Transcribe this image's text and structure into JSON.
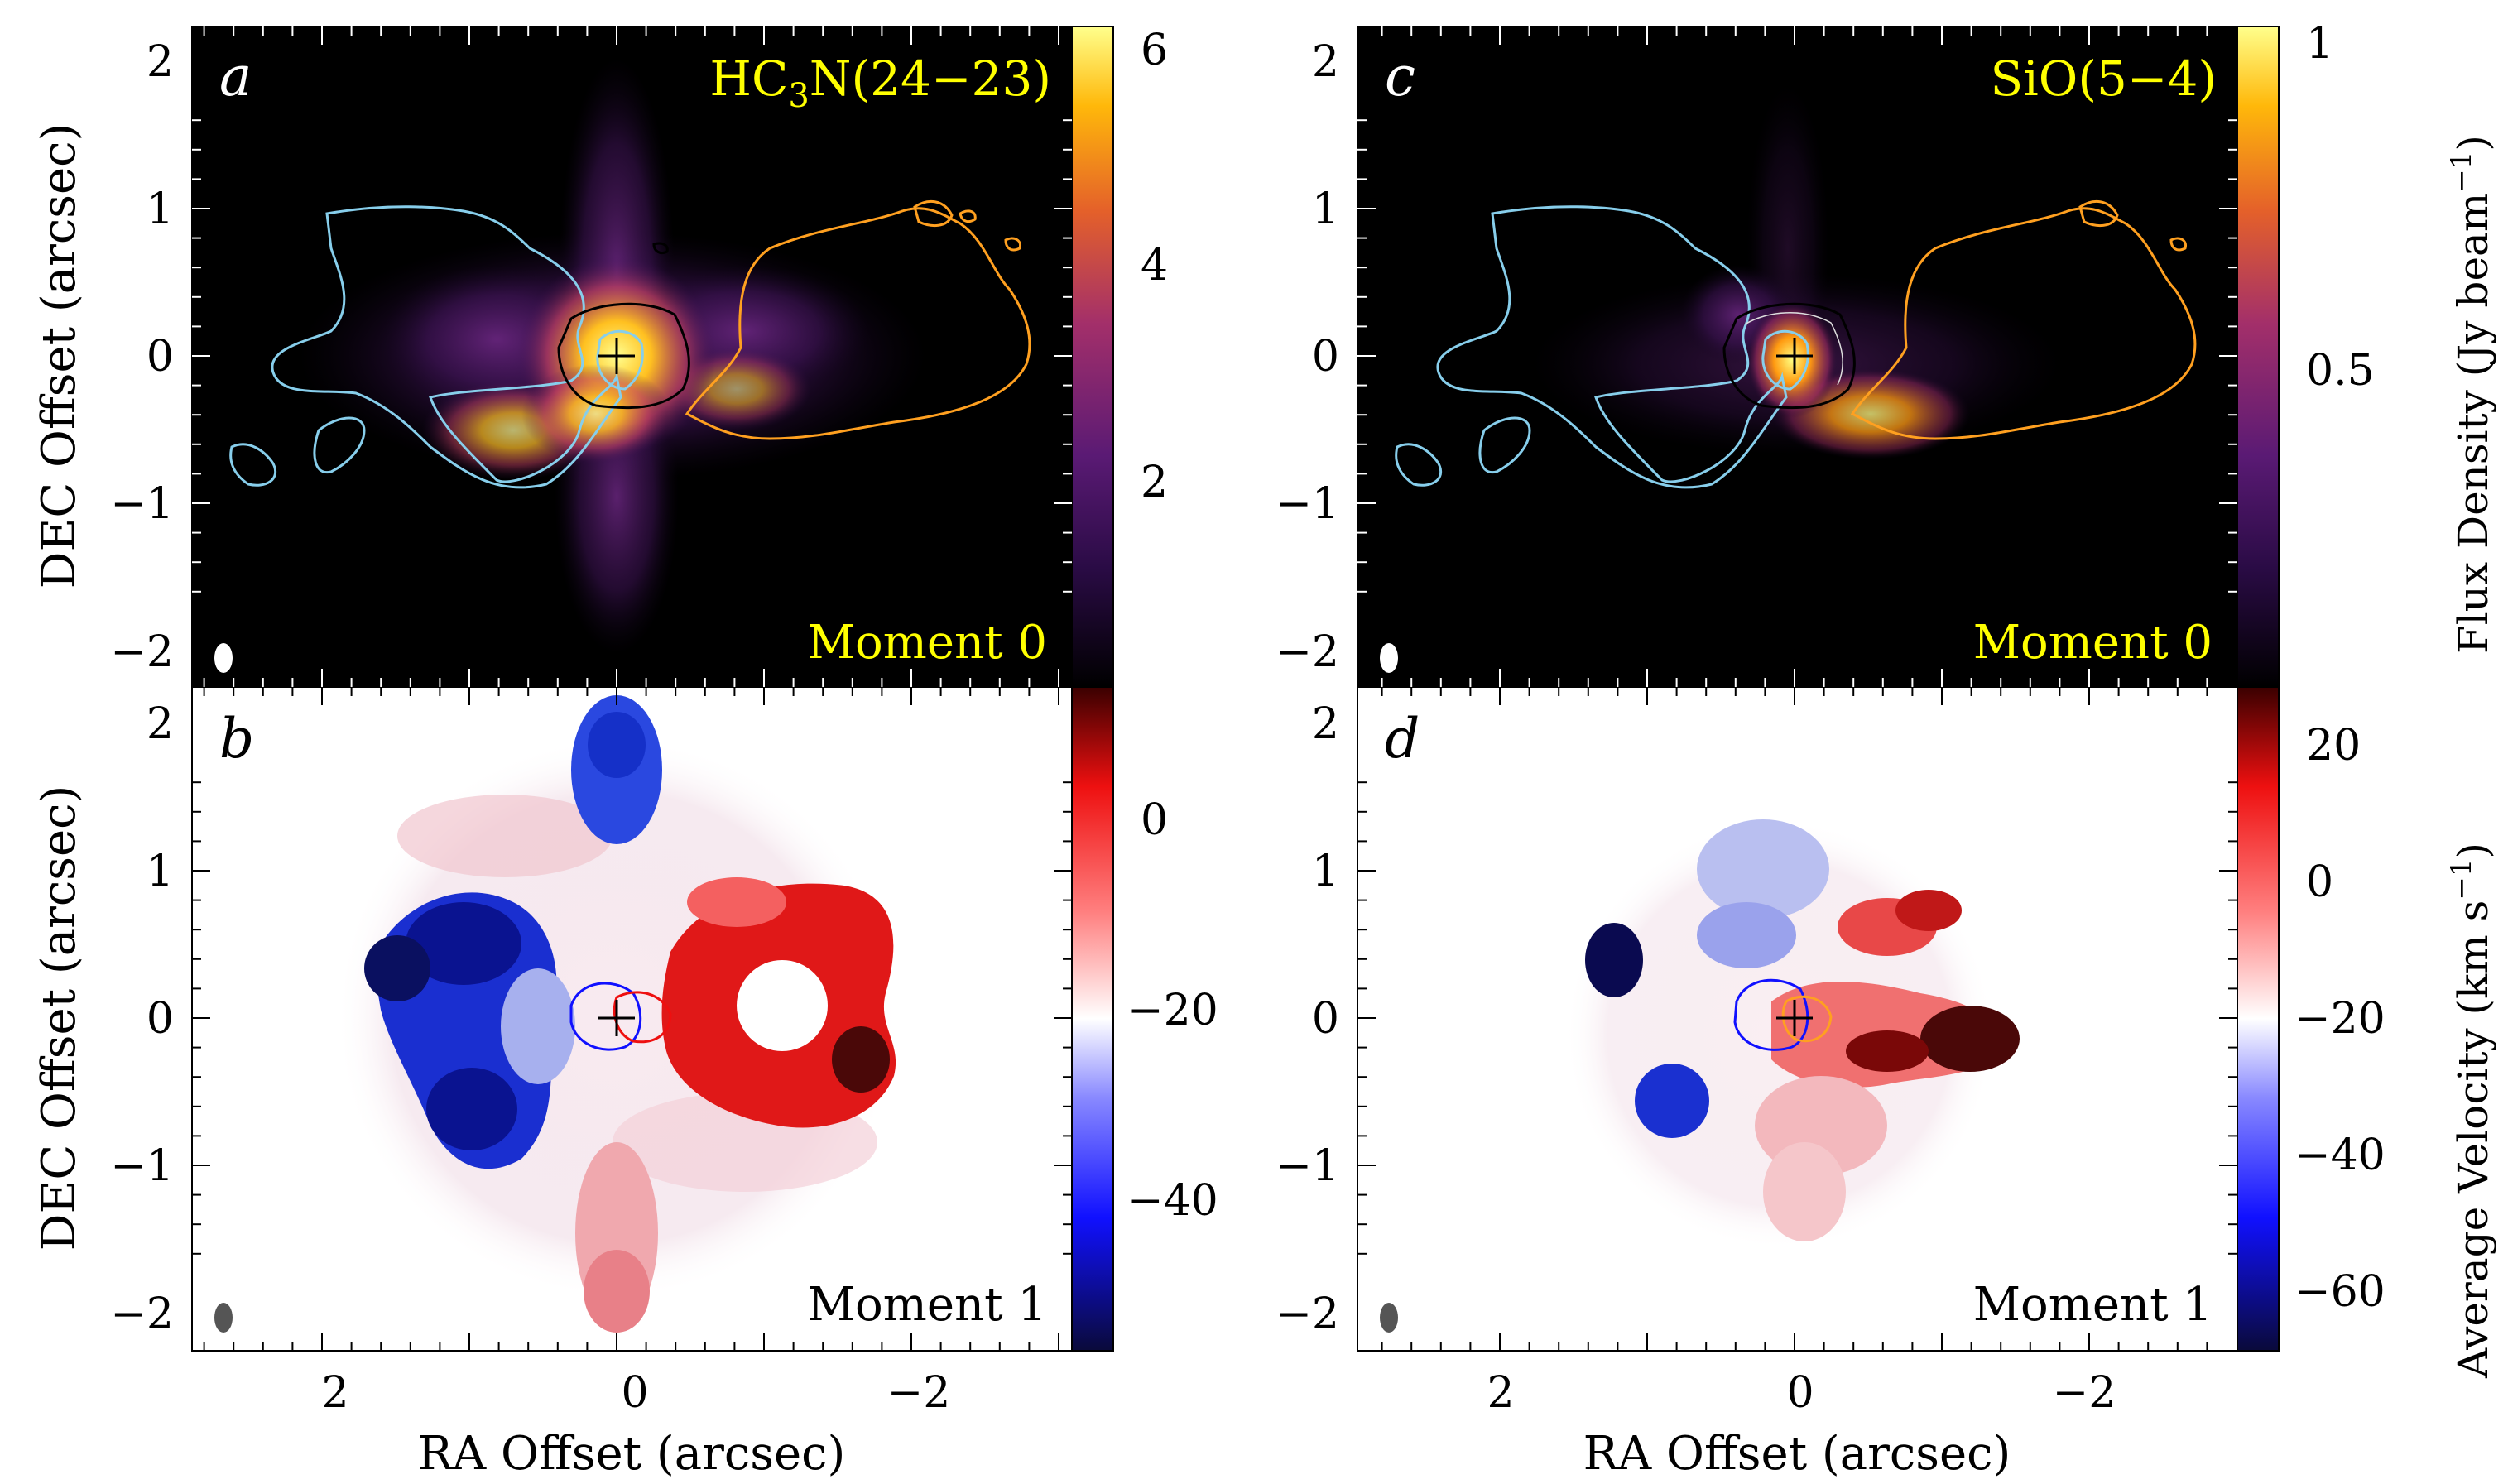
{
  "figure": {
    "panels": {
      "a": {
        "letter": "a",
        "molecule": "HC",
        "molecule_sub": "3",
        "molecule_rest": "N(24−23)",
        "moment_label": "Moment 0",
        "colorbar_ticks": [
          "6",
          "4",
          "2"
        ]
      },
      "b": {
        "letter": "b",
        "moment_label": "Moment 1",
        "colorbar_ticks": [
          "0",
          "−20",
          "−40"
        ]
      },
      "c": {
        "letter": "c",
        "molecule": "SiO(5−4)",
        "moment_label": "Moment 0",
        "colorbar_ticks": [
          "1",
          "0.5"
        ]
      },
      "d": {
        "letter": "d",
        "moment_label": "Moment 1",
        "colorbar_ticks": [
          "20",
          "0",
          "−20",
          "−40",
          "−60"
        ]
      }
    },
    "axes": {
      "dec_label": "DEC Offset (arcsec)",
      "ra_label": "RA Offset (arcsec)",
      "dec_ticks": [
        "2",
        "1",
        "0",
        "−1",
        "−2"
      ],
      "ra_ticks": [
        "2",
        "0",
        "−2"
      ]
    },
    "colorbar_labels": {
      "flux": "Flux Density (Jy beam",
      "flux_sup": "−1",
      "flux_close": ")",
      "velocity": "Average Velocity (km s",
      "velocity_sup": "−1",
      "velocity_close": ")"
    },
    "colors": {
      "moment0_cmap": [
        "#000000",
        "#2a0b45",
        "#5a1a74",
        "#a32f6a",
        "#e4602a",
        "#ffb80a",
        "#ffff8c"
      ],
      "moment1_cmap": [
        "#0a0a3a",
        "#1010ff",
        "#8888ff",
        "#ffffff",
        "#ff8080",
        "#ee1010",
        "#3a0000"
      ],
      "blue_lobe_contour": "#87ceeb",
      "red_lobe_contour": "#ffa020",
      "label_yellow": "#ffff00"
    }
  }
}
